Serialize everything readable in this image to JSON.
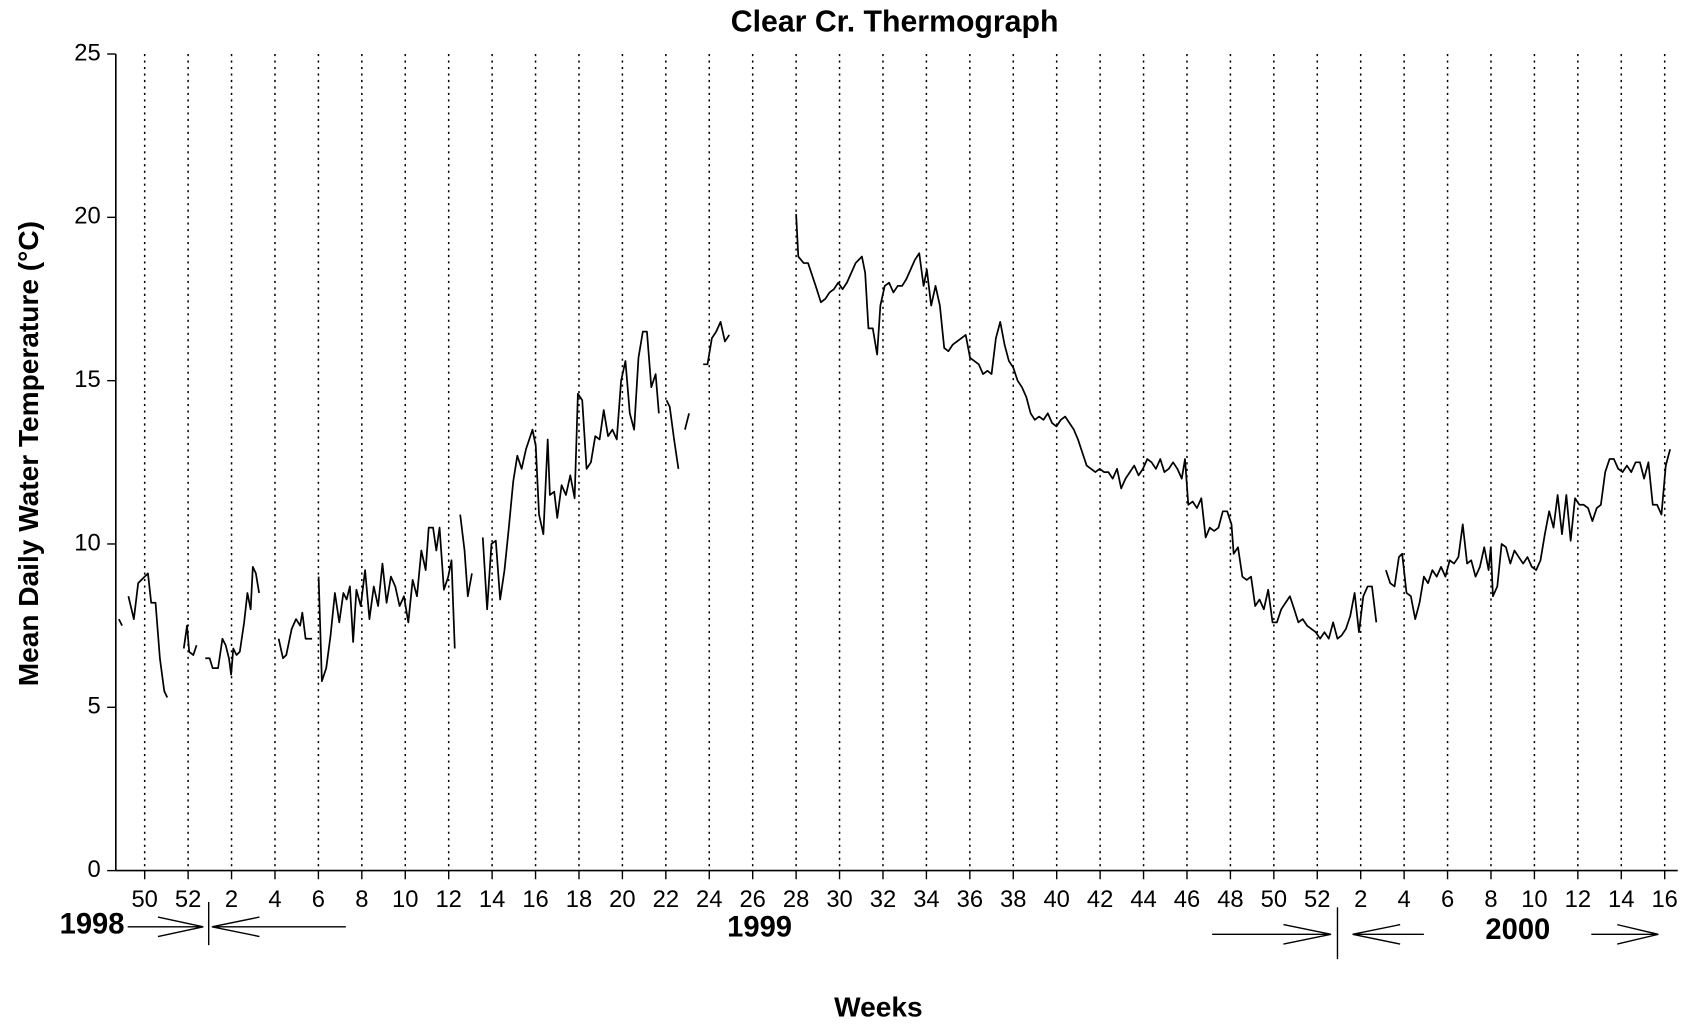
{
  "chart_data": {
    "type": "line",
    "title": "Clear Cr. Thermograph",
    "x_label": "Weeks",
    "y_label": "Mean Daily Water Temperature (°C)",
    "annotations": [
      "1998",
      "1999",
      "2000"
    ],
    "xlim": [
      48.67,
      120.6
    ],
    "ylim": [
      0,
      25
    ],
    "yticks": [
      0,
      5,
      10,
      15,
      20,
      25
    ],
    "xticks": [
      50,
      52,
      {
        "value": 54,
        "label": "2"
      },
      {
        "value": 56,
        "label": "4"
      },
      {
        "value": 58,
        "label": "6"
      },
      {
        "value": 60,
        "label": "8"
      },
      {
        "value": 62,
        "label": "10"
      },
      {
        "value": 64,
        "label": "12"
      },
      {
        "value": 66,
        "label": "14"
      },
      {
        "value": 68,
        "label": "16"
      },
      {
        "value": 70,
        "label": "18"
      },
      {
        "value": 72,
        "label": "20"
      },
      {
        "value": 74,
        "label": "22"
      },
      {
        "value": 76,
        "label": "24"
      },
      {
        "value": 78,
        "label": "26"
      },
      {
        "value": 80,
        "label": "28"
      },
      {
        "value": 82,
        "label": "30"
      },
      {
        "value": 84,
        "label": "32"
      },
      {
        "value": 86,
        "label": "34"
      },
      {
        "value": 88,
        "label": "36"
      },
      {
        "value": 90,
        "label": "38"
      },
      {
        "value": 92,
        "label": "40"
      },
      {
        "value": 94,
        "label": "42"
      },
      {
        "value": 96,
        "label": "44"
      },
      {
        "value": 98,
        "label": "46"
      },
      {
        "value": 100,
        "label": "48"
      },
      {
        "value": 102,
        "label": "50"
      },
      {
        "value": 104,
        "label": "52"
      },
      {
        "value": 106,
        "label": "2"
      },
      {
        "value": 108,
        "label": "4"
      },
      {
        "value": 110,
        "label": "6"
      },
      {
        "value": 112,
        "label": "8"
      },
      {
        "value": 114,
        "label": "10"
      },
      {
        "value": 116,
        "label": "12"
      },
      {
        "value": 118,
        "label": "14"
      },
      {
        "value": 120,
        "label": "16"
      }
    ],
    "grid": true,
    "x": [
      48.81,
      48.96,
      null,
      49.25,
      49.5,
      49.7,
      50.0,
      50.15,
      50.3,
      50.5,
      50.7,
      50.9,
      51.04,
      null,
      51.8,
      51.95,
      52.05,
      52.24,
      52.39,
      null,
      52.79,
      52.99,
      53.13,
      53.38,
      53.58,
      53.73,
      53.88,
      53.98,
      54.08,
      54.23,
      54.38,
      54.58,
      54.73,
      54.88,
      54.98,
      55.12,
      55.27,
      null,
      56.17,
      56.37,
      56.52,
      56.77,
      56.97,
      57.16,
      57.26,
      57.41,
      57.71,
      null,
      58.01,
      58.16,
      58.36,
      58.56,
      58.76,
      58.96,
      59.15,
      59.3,
      59.45,
      59.6,
      59.75,
      59.95,
      60.15,
      60.35,
      60.55,
      60.75,
      60.95,
      61.14,
      61.34,
      61.54,
      61.74,
      61.94,
      62.14,
      62.34,
      62.54,
      62.74,
      62.94,
      63.08,
      63.28,
      63.43,
      63.58,
      63.78,
      63.98,
      64.13,
      64.28,
      null,
      64.53,
      64.73,
      64.88,
      65.07,
      null,
      65.57,
      65.77,
      65.97,
      66.17,
      66.37,
      66.57,
      66.77,
      66.97,
      67.16,
      67.36,
      67.56,
      67.86,
      68.01,
      68.16,
      68.36,
      68.56,
      68.66,
      68.86,
      69.0,
      69.2,
      69.4,
      69.6,
      69.8,
      69.95,
      70.15,
      70.35,
      70.55,
      70.75,
      70.95,
      71.14,
      71.34,
      71.54,
      71.74,
      71.94,
      72.14,
      72.34,
      72.54,
      72.74,
      72.94,
      73.13,
      73.33,
      73.53,
      73.68,
      null,
      74.03,
      74.18,
      74.38,
      74.58,
      null,
      74.88,
      75.07,
      null,
      75.72,
      75.92,
      76.12,
      76.32,
      76.52,
      76.72,
      76.92,
      null,
      80.0,
      80.1,
      80.35,
      80.55,
      80.75,
      80.95,
      81.14,
      81.34,
      81.54,
      81.74,
      81.94,
      82.14,
      82.34,
      82.54,
      82.74,
      83.03,
      83.18,
      83.33,
      83.53,
      83.73,
      83.88,
      84.08,
      84.28,
      84.48,
      84.68,
      84.88,
      85.07,
      85.27,
      85.47,
      85.67,
      85.87,
      86.02,
      86.22,
      86.42,
      86.62,
      86.82,
      87.01,
      87.21,
      87.41,
      87.61,
      87.81,
      88.01,
      88.21,
      88.41,
      88.61,
      88.81,
      89.0,
      89.2,
      89.4,
      89.6,
      89.8,
      90.0,
      90.2,
      90.4,
      90.6,
      90.8,
      90.99,
      91.19,
      91.39,
      91.59,
      91.79,
      91.99,
      92.19,
      92.39,
      92.59,
      92.79,
      92.98,
      93.18,
      93.38,
      93.58,
      93.78,
      93.98,
      94.18,
      94.38,
      94.58,
      94.78,
      94.97,
      95.17,
      95.37,
      95.57,
      95.77,
      95.97,
      96.17,
      96.37,
      96.57,
      96.77,
      96.96,
      97.16,
      97.36,
      97.56,
      97.76,
      97.91,
      98.06,
      98.26,
      98.46,
      98.66,
      98.86,
      99.05,
      99.25,
      99.45,
      99.65,
      99.85,
      100.05,
      100.15,
      100.35,
      100.55,
      100.75,
      100.95,
      101.14,
      101.34,
      101.54,
      101.74,
      101.94,
      102.14,
      102.34,
      102.54,
      102.74,
      102.94,
      103.13,
      103.33,
      103.53,
      103.73,
      103.93,
      104.13,
      104.33,
      104.53,
      104.73,
      104.93,
      105.12,
      105.32,
      105.52,
      105.72,
      105.92,
      106.12,
      106.32,
      106.52,
      106.72,
      null,
      107.16,
      107.36,
      107.56,
      107.76,
      107.91,
      108.11,
      108.31,
      108.51,
      108.71,
      108.91,
      109.1,
      109.3,
      109.5,
      109.7,
      109.9,
      110.1,
      110.3,
      110.5,
      110.7,
      110.9,
      111.09,
      111.29,
      111.49,
      111.69,
      111.89,
      111.99,
      112.09,
      112.29,
      112.49,
      112.69,
      112.89,
      113.08,
      113.28,
      113.48,
      113.68,
      113.88,
      114.08,
      114.28,
      114.48,
      114.68,
      114.88,
      115.07,
      115.27,
      115.47,
      115.67,
      115.87,
      116.07,
      116.27,
      116.47,
      116.67,
      116.87,
      117.06,
      117.26,
      117.46,
      117.66,
      117.86,
      118.06,
      118.26,
      118.46,
      118.66,
      118.86,
      119.05,
      119.25,
      119.45,
      119.65,
      119.85,
      120.05,
      120.25
    ],
    "series": [
      {
        "color": "#000000",
        "values": [
          7.7,
          7.5,
          null,
          8.4,
          7.7,
          8.8,
          9.0,
          9.1,
          8.2,
          8.2,
          6.5,
          5.5,
          5.3,
          null,
          6.8,
          7.5,
          6.7,
          6.6,
          6.9,
          null,
          6.5,
          6.5,
          6.2,
          6.2,
          7.1,
          6.9,
          6.5,
          6.0,
          6.8,
          6.6,
          6.7,
          7.6,
          8.5,
          8.0,
          9.3,
          9.1,
          8.5,
          null,
          7.1,
          6.5,
          6.6,
          7.4,
          7.7,
          7.5,
          7.9,
          7.1,
          7.1,
          null,
          9.0,
          5.8,
          6.2,
          7.2,
          8.5,
          7.6,
          8.5,
          8.3,
          8.7,
          7.0,
          8.6,
          8.1,
          9.2,
          7.7,
          8.7,
          8.1,
          9.4,
          8.2,
          9.0,
          8.7,
          8.1,
          8.4,
          7.6,
          8.9,
          8.4,
          9.8,
          9.2,
          10.5,
          10.5,
          9.8,
          10.5,
          8.6,
          9.0,
          9.5,
          6.8,
          null,
          10.9,
          9.8,
          8.4,
          9.1,
          null,
          10.2,
          8.0,
          10.0,
          10.1,
          8.3,
          9.2,
          10.5,
          11.9,
          12.7,
          12.3,
          12.9,
          13.5,
          13.0,
          10.9,
          10.3,
          13.2,
          11.5,
          11.6,
          10.8,
          11.8,
          11.5,
          12.1,
          11.4,
          14.6,
          14.4,
          12.3,
          12.5,
          13.3,
          13.2,
          14.1,
          13.3,
          13.5,
          13.2,
          15.0,
          15.6,
          14.0,
          13.5,
          15.7,
          16.5,
          16.5,
          14.8,
          15.2,
          14.0,
          null,
          14.4,
          14.2,
          13.2,
          12.3,
          null,
          13.5,
          14.0,
          null,
          15.5,
          15.5,
          16.3,
          16.5,
          16.8,
          16.2,
          16.4,
          null,
          20.1,
          18.8,
          18.6,
          18.6,
          18.2,
          17.8,
          17.4,
          17.5,
          17.7,
          17.8,
          18.0,
          17.8,
          18.0,
          18.3,
          18.6,
          18.8,
          18.3,
          16.6,
          16.6,
          15.8,
          17.3,
          17.9,
          18.0,
          17.7,
          17.9,
          17.9,
          18.1,
          18.4,
          18.7,
          18.9,
          17.9,
          18.4,
          17.3,
          17.9,
          17.3,
          16.0,
          15.9,
          16.1,
          16.2,
          16.3,
          16.4,
          15.7,
          15.6,
          15.5,
          15.2,
          15.3,
          15.2,
          16.3,
          16.8,
          16.1,
          15.6,
          15.4,
          15.0,
          14.8,
          14.5,
          14.0,
          13.8,
          13.9,
          13.8,
          14.0,
          13.7,
          13.6,
          13.8,
          13.9,
          13.7,
          13.5,
          13.2,
          12.8,
          12.4,
          12.3,
          12.2,
          12.3,
          12.2,
          12.2,
          12.0,
          12.3,
          11.7,
          12.0,
          12.2,
          12.4,
          12.1,
          12.3,
          12.6,
          12.5,
          12.3,
          12.6,
          12.2,
          12.3,
          12.5,
          12.3,
          12.0,
          12.6,
          11.2,
          11.3,
          11.1,
          11.4,
          10.2,
          10.5,
          10.4,
          10.5,
          11.0,
          11.0,
          10.6,
          9.7,
          9.9,
          9.0,
          8.9,
          9.0,
          8.1,
          8.3,
          8.0,
          8.6,
          7.6,
          7.6,
          8.0,
          8.2,
          8.4,
          8.0,
          7.6,
          7.7,
          7.5,
          7.4,
          7.3,
          7.1,
          7.3,
          7.1,
          7.6,
          7.1,
          7.2,
          7.4,
          7.8,
          8.5,
          7.3,
          8.4,
          8.7,
          8.7,
          7.6,
          null,
          9.2,
          8.8,
          8.7,
          9.6,
          9.7,
          8.5,
          8.4,
          7.7,
          8.2,
          9.0,
          8.8,
          9.2,
          9.0,
          9.3,
          9.0,
          9.5,
          9.4,
          9.6,
          10.6,
          9.4,
          9.5,
          9.0,
          9.3,
          9.9,
          9.2,
          9.9,
          8.4,
          8.7,
          10.0,
          9.9,
          9.4,
          9.8,
          9.6,
          9.4,
          9.6,
          9.3,
          9.2,
          9.5,
          10.3,
          11.0,
          10.5,
          11.5,
          10.3,
          11.5,
          10.1,
          11.4,
          11.2,
          11.2,
          11.1,
          10.7,
          11.1,
          11.2,
          12.2,
          12.6,
          12.6,
          12.3,
          12.2,
          12.4,
          12.2,
          12.5,
          12.5,
          12.0,
          12.5,
          11.2,
          11.2,
          10.9,
          12.4,
          12.9
        ]
      }
    ]
  }
}
